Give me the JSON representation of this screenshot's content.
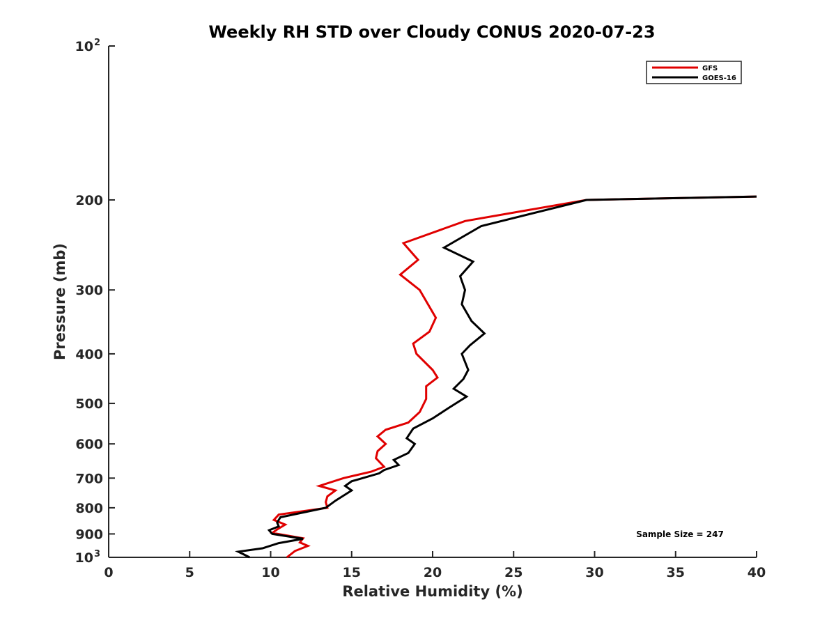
{
  "chart_data": {
    "type": "line",
    "title": "Weekly RH STD over Cloudy CONUS 2020-07-23",
    "xlabel": "Relative Humidity (%)",
    "ylabel": "Pressure (mb)",
    "xlim": [
      0,
      40
    ],
    "ylim": [
      100,
      1000
    ],
    "y_scale": "log",
    "y_reversed": true,
    "x_ticks": [
      "0",
      "5",
      "10",
      "15",
      "20",
      "25",
      "30",
      "35",
      "40"
    ],
    "y_ticks": [
      {
        "value": 100,
        "label": "10",
        "sup": "2"
      },
      {
        "value": 200,
        "label": "200",
        "sup": ""
      },
      {
        "value": 300,
        "label": "300",
        "sup": ""
      },
      {
        "value": 400,
        "label": "400",
        "sup": ""
      },
      {
        "value": 500,
        "label": "500",
        "sup": ""
      },
      {
        "value": 600,
        "label": "600",
        "sup": ""
      },
      {
        "value": 700,
        "label": "700",
        "sup": ""
      },
      {
        "value": 800,
        "label": "800",
        "sup": ""
      },
      {
        "value": 900,
        "label": "900",
        "sup": ""
      },
      {
        "value": 1000,
        "label": "10",
        "sup": "3"
      }
    ],
    "legend_position": "top-right",
    "grid": false,
    "annotation": "Sample Size = 247",
    "series": [
      {
        "name": "GFS",
        "color": "#e00000",
        "points": [
          [
            40.0,
            197
          ],
          [
            29.5,
            200
          ],
          [
            22.0,
            220
          ],
          [
            18.2,
            243
          ],
          [
            19.1,
            262
          ],
          [
            18.0,
            280
          ],
          [
            19.2,
            300
          ],
          [
            20.2,
            340
          ],
          [
            19.8,
            362
          ],
          [
            18.8,
            382
          ],
          [
            19.0,
            400
          ],
          [
            20.0,
            430
          ],
          [
            20.3,
            445
          ],
          [
            19.6,
            463
          ],
          [
            19.6,
            490
          ],
          [
            19.2,
            520
          ],
          [
            18.5,
            545
          ],
          [
            17.1,
            563
          ],
          [
            16.6,
            580
          ],
          [
            17.1,
            600
          ],
          [
            16.6,
            620
          ],
          [
            16.5,
            640
          ],
          [
            17.0,
            665
          ],
          [
            16.2,
            680
          ],
          [
            14.5,
            700
          ],
          [
            13.0,
            725
          ],
          [
            14.0,
            740
          ],
          [
            13.5,
            760
          ],
          [
            13.4,
            780
          ],
          [
            13.5,
            800
          ],
          [
            10.5,
            825
          ],
          [
            10.2,
            845
          ],
          [
            10.9,
            863
          ],
          [
            10.4,
            882
          ],
          [
            10.1,
            896
          ],
          [
            10.9,
            905
          ],
          [
            12.0,
            918
          ],
          [
            11.8,
            935
          ],
          [
            12.3,
            950
          ],
          [
            11.5,
            972
          ],
          [
            11.0,
            1000
          ]
        ]
      },
      {
        "name": "GOES-16",
        "color": "#000000",
        "points": [
          [
            40.0,
            197
          ],
          [
            29.5,
            200
          ],
          [
            23.0,
            225
          ],
          [
            20.7,
            248
          ],
          [
            22.5,
            264
          ],
          [
            21.7,
            282
          ],
          [
            22.0,
            300
          ],
          [
            21.8,
            320
          ],
          [
            22.4,
            345
          ],
          [
            23.2,
            365
          ],
          [
            22.3,
            385
          ],
          [
            21.8,
            400
          ],
          [
            22.2,
            430
          ],
          [
            21.9,
            448
          ],
          [
            21.3,
            468
          ],
          [
            22.1,
            485
          ],
          [
            21.0,
            510
          ],
          [
            20.0,
            535
          ],
          [
            18.8,
            560
          ],
          [
            18.4,
            585
          ],
          [
            18.9,
            600
          ],
          [
            18.5,
            625
          ],
          [
            17.6,
            645
          ],
          [
            17.9,
            660
          ],
          [
            17.0,
            675
          ],
          [
            16.7,
            685
          ],
          [
            15.0,
            710
          ],
          [
            14.6,
            725
          ],
          [
            15.0,
            740
          ],
          [
            14.0,
            775
          ],
          [
            13.4,
            800
          ],
          [
            10.6,
            835
          ],
          [
            10.4,
            855
          ],
          [
            10.5,
            870
          ],
          [
            9.9,
            885
          ],
          [
            10.1,
            900
          ],
          [
            12.0,
            920
          ],
          [
            10.5,
            938
          ],
          [
            9.5,
            960
          ],
          [
            8.0,
            975
          ],
          [
            8.7,
            1000
          ]
        ]
      }
    ]
  }
}
